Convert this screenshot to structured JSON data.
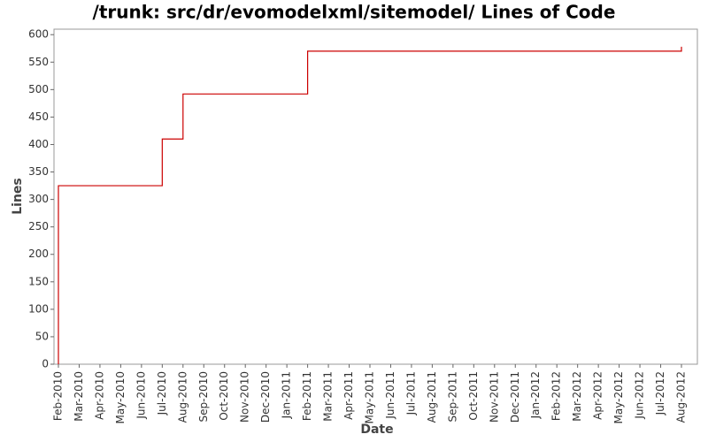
{
  "chart_data": {
    "type": "step-line",
    "title": "/trunk: src/dr/evomodelxml/sitemodel/ Lines of Code",
    "x_label": "Date",
    "y_label": "Lines",
    "xticks": [
      "Feb-2010",
      "Mar-2010",
      "Apr-2010",
      "May-2010",
      "Jun-2010",
      "Jul-2010",
      "Aug-2010",
      "Sep-2010",
      "Oct-2010",
      "Nov-2010",
      "Dec-2010",
      "Jan-2011",
      "Feb-2011",
      "Mar-2011",
      "Apr-2011",
      "May-2011",
      "Jun-2011",
      "Jul-2011",
      "Aug-2011",
      "Sep-2011",
      "Oct-2011",
      "Nov-2011",
      "Dec-2011",
      "Jan-2012",
      "Feb-2012",
      "Mar-2012",
      "Apr-2012",
      "May-2012",
      "Jun-2012",
      "Jul-2012",
      "Aug-2012"
    ],
    "x": [
      "Feb-2010",
      "Feb-2010",
      "Jul-2010",
      "Aug-2010",
      "Feb-2011",
      "Aug-2012"
    ],
    "series": [
      {
        "name": "Lines",
        "color": "#cc0000",
        "values": [
          0,
          325,
          410,
          492,
          570,
          578
        ]
      }
    ],
    "ylim": [
      0,
      610
    ],
    "yticks": [
      0,
      50,
      100,
      150,
      200,
      250,
      300,
      350,
      400,
      450,
      500,
      550,
      600
    ],
    "grid": false
  }
}
